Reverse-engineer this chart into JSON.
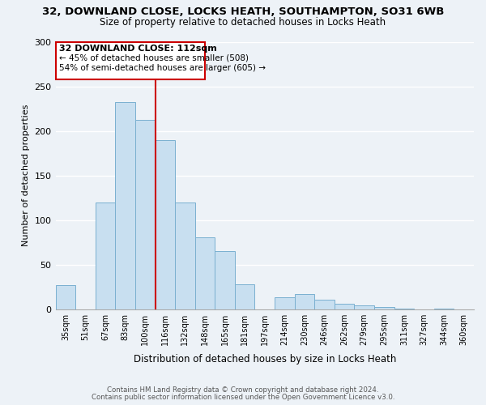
{
  "title": "32, DOWNLAND CLOSE, LOCKS HEATH, SOUTHAMPTON, SO31 6WB",
  "subtitle": "Size of property relative to detached houses in Locks Heath",
  "xlabel": "Distribution of detached houses by size in Locks Heath",
  "ylabel": "Number of detached properties",
  "bar_color": "#c8dff0",
  "bar_edge_color": "#7ab0d0",
  "categories": [
    "35sqm",
    "51sqm",
    "67sqm",
    "83sqm",
    "100sqm",
    "116sqm",
    "132sqm",
    "148sqm",
    "165sqm",
    "181sqm",
    "197sqm",
    "214sqm",
    "230sqm",
    "246sqm",
    "262sqm",
    "279sqm",
    "295sqm",
    "311sqm",
    "327sqm",
    "344sqm",
    "360sqm"
  ],
  "values": [
    27,
    0,
    120,
    232,
    212,
    190,
    120,
    81,
    65,
    28,
    0,
    13,
    17,
    11,
    6,
    4,
    2,
    1,
    0,
    1,
    0
  ],
  "vline_index": 5,
  "vline_color": "#cc0000",
  "annotation_title": "32 DOWNLAND CLOSE: 112sqm",
  "annotation_line1": "← 45% of detached houses are smaller (508)",
  "annotation_line2": "54% of semi-detached houses are larger (605) →",
  "annotation_box_edge": "#cc0000",
  "footer_line1": "Contains HM Land Registry data © Crown copyright and database right 2024.",
  "footer_line2": "Contains public sector information licensed under the Open Government Licence v3.0.",
  "ylim": [
    0,
    300
  ],
  "yticks": [
    0,
    50,
    100,
    150,
    200,
    250,
    300
  ],
  "background_color": "#edf2f7"
}
